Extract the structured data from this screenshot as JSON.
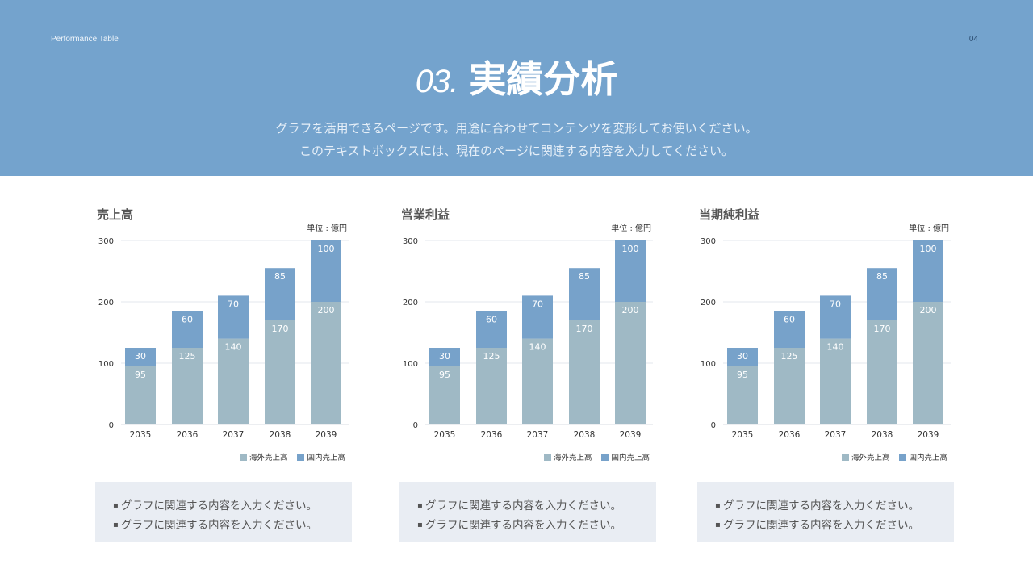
{
  "header": {
    "small_title": "Performance Table",
    "page_number": "04",
    "title_number": "03.",
    "title": "実績分析",
    "subtitle_lines": [
      "グラフを活用できるページです。用途に合わせてコンテンツを変形してお使いください。",
      "このテキストボックスには、現在のページに関連する内容を入力してください。"
    ]
  },
  "colors": {
    "header": "#74a3cd",
    "overseas": "#9fb9c5",
    "domestic": "#77a2ca"
  },
  "chart_data": [
    {
      "type": "bar",
      "stacked": true,
      "title": "売上高",
      "unit": "単位 : 億円",
      "categories": [
        "2035",
        "2036",
        "2037",
        "2038",
        "2039"
      ],
      "yticks": [
        "0",
        "100",
        "200",
        "300"
      ],
      "ylim": [
        0,
        300
      ],
      "grid": true,
      "legend": "bottom-right",
      "series": [
        {
          "name": "海外売上高",
          "values": [
            95,
            125,
            140,
            170,
            200
          ]
        },
        {
          "name": "国内売上高",
          "values": [
            30,
            60,
            70,
            85,
            100
          ]
        }
      ]
    },
    {
      "type": "bar",
      "stacked": true,
      "title": "営業利益",
      "unit": "単位 : 億円",
      "categories": [
        "2035",
        "2036",
        "2037",
        "2038",
        "2039"
      ],
      "yticks": [
        "0",
        "100",
        "200",
        "300"
      ],
      "ylim": [
        0,
        300
      ],
      "grid": true,
      "legend": "bottom-right",
      "series": [
        {
          "name": "海外売上高",
          "values": [
            95,
            125,
            140,
            170,
            200
          ]
        },
        {
          "name": "国内売上高",
          "values": [
            30,
            60,
            70,
            85,
            100
          ]
        }
      ]
    },
    {
      "type": "bar",
      "stacked": true,
      "title": "当期純利益",
      "unit": "単位 : 億円",
      "categories": [
        "2035",
        "2036",
        "2037",
        "2038",
        "2039"
      ],
      "yticks": [
        "0",
        "100",
        "200",
        "300"
      ],
      "ylim": [
        0,
        300
      ],
      "grid": true,
      "legend": "bottom-right",
      "series": [
        {
          "name": "海外売上高",
          "values": [
            95,
            125,
            140,
            170,
            200
          ]
        },
        {
          "name": "国内売上高",
          "values": [
            30,
            60,
            70,
            85,
            100
          ]
        }
      ]
    }
  ],
  "notes": [
    [
      "グラフに関連する内容を入力ください。",
      "グラフに関連する内容を入力ください。"
    ],
    [
      "グラフに関連する内容を入力ください。",
      "グラフに関連する内容を入力ください。"
    ],
    [
      "グラフに関連する内容を入力ください。",
      "グラフに関連する内容を入力ください。"
    ]
  ]
}
